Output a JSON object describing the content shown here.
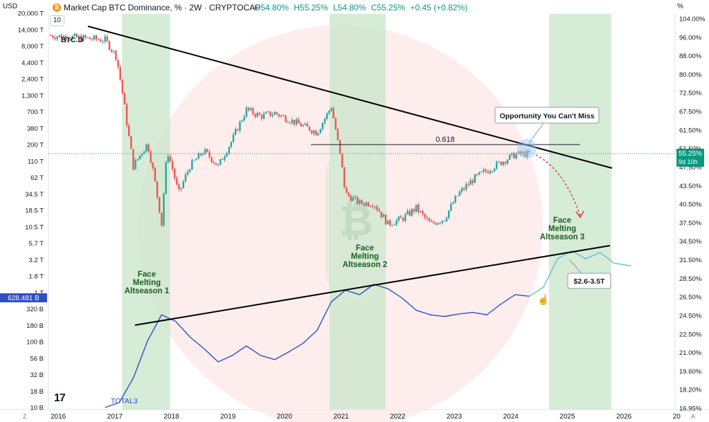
{
  "header": {
    "symbol_box": "USD",
    "title": "Market Cap BTC Dominance, % · 2W · CRYPTOCAP",
    "ohlc": [
      "O54.80%",
      "H55.25%",
      "L54.80%",
      "C55.25%",
      "+0.45 (+0.82%)"
    ],
    "right_unit": "%",
    "interval": "10"
  },
  "colors": {
    "up": "#26a69a",
    "down": "#ef5350",
    "trendline": "#000000",
    "total3": "#2d4fc7",
    "total3_projection": "#5fb8d8",
    "altseason_band": "#c8e6c9",
    "background_circle": "#fde7e7",
    "price_label": "#089981"
  },
  "chart_data": {
    "type": "line",
    "title": "",
    "x_ticks": [
      "2016",
      "2017",
      "2018",
      "2019",
      "2020",
      "2021",
      "2022",
      "2023",
      "2024",
      "2025",
      "2026",
      "20"
    ],
    "left_axis_ticks": [
      "20,000 T",
      "14,000 T",
      "8,000 T",
      "4,400 T",
      "2,400 T",
      "1,300 T",
      "700 T",
      "380 T",
      "200 T",
      "110 T",
      "62 T",
      "34.5 T",
      "18.5 T",
      "10.5 T",
      "5.7 T",
      "3.2 T",
      "1.8 T",
      "1 T",
      "320 B",
      "180 B",
      "100 B",
      "56 B",
      "32 B",
      "18 B",
      "10 B"
    ],
    "left_current_label": "628.481 B",
    "right_axis_ticks": [
      "104.00%",
      "96.00%",
      "88.00%",
      "80.00%",
      "72.50%",
      "67.50%",
      "61.50%",
      "51.50%",
      "47.50%",
      "43.50%",
      "40.50%",
      "37.50%",
      "34.50%",
      "31.50%",
      "28.50%",
      "26.50%",
      "24.50%",
      "22.50%",
      "21.00%",
      "19.60%",
      "18.20%",
      "16.95%"
    ],
    "right_current_label": "55.25%",
    "right_countdown_label": "9d 10h",
    "series": [
      {
        "name": "BTC.D",
        "type": "candlestick",
        "unit": "%",
        "x": [
          "2016.0",
          "2016.5",
          "2017.0",
          "2017.2",
          "2017.4",
          "2017.5",
          "2017.75",
          "2018.0",
          "2018.1",
          "2018.3",
          "2018.5",
          "2018.75",
          "2019.0",
          "2019.25",
          "2019.5",
          "2019.75",
          "2020.0",
          "2020.25",
          "2020.5",
          "2020.75",
          "2021.0",
          "2021.25",
          "2021.5",
          "2021.75",
          "2022.0",
          "2022.25",
          "2022.5",
          "2022.75",
          "2023.0",
          "2023.25",
          "2023.5",
          "2023.75",
          "2024.0",
          "2024.25",
          "2024.5"
        ],
        "y": [
          96,
          95,
          94,
          87,
          62,
          52,
          58,
          40,
          56,
          46,
          52,
          56,
          52,
          59,
          68,
          66,
          67,
          65,
          63,
          61,
          69,
          46,
          44,
          44,
          40,
          41,
          43,
          40,
          41,
          46,
          49,
          51,
          53,
          55,
          55.25
        ]
      },
      {
        "name": "TOTAL3",
        "type": "line",
        "unit": "USD",
        "x": [
          "2017.0",
          "2017.25",
          "2017.5",
          "2017.75",
          "2018.0",
          "2018.25",
          "2018.5",
          "2018.75",
          "2019.0",
          "2019.25",
          "2019.5",
          "2019.75",
          "2020.0",
          "2020.25",
          "2020.5",
          "2020.75",
          "2021.0",
          "2021.25",
          "2021.5",
          "2021.75",
          "2022.0",
          "2022.25",
          "2022.5",
          "2022.75",
          "2023.0",
          "2023.25",
          "2023.5",
          "2023.75",
          "2024.0",
          "2024.25",
          "2024.5"
        ],
        "y": [
          10,
          12,
          30,
          120,
          320,
          250,
          140,
          90,
          55,
          70,
          100,
          70,
          60,
          80,
          110,
          180,
          520,
          800,
          680,
          1000,
          850,
          600,
          380,
          320,
          300,
          330,
          350,
          320,
          480,
          680,
          640
        ]
      },
      {
        "name": "TOTAL3 projection",
        "type": "line",
        "unit": "USD",
        "x": [
          "2024.5",
          "2024.75",
          "2025.0",
          "2025.25",
          "2025.5",
          "2025.75",
          "2026.0",
          "2026.3"
        ],
        "y": [
          640,
          900,
          2600,
          3500,
          2600,
          3300,
          2200,
          2000
        ]
      }
    ],
    "annotations": {
      "btcd_label": "BTC.D",
      "total3_label": "TOTAL3",
      "fib_label": "0.618",
      "callout_top": "Opportunity You Can't Miss",
      "callout_bottom": "$2.6-3.5T",
      "altseasons": [
        [
          "Face",
          "Melting",
          "Altseason 1"
        ],
        [
          "Face",
          "Melting",
          "Altseason 2"
        ],
        [
          "Face",
          "Melting",
          "Altseason 3"
        ]
      ]
    },
    "legend": "none",
    "grid": false
  },
  "footer": {
    "left_icon": "Z",
    "right_icon": "A",
    "logo": "17"
  }
}
